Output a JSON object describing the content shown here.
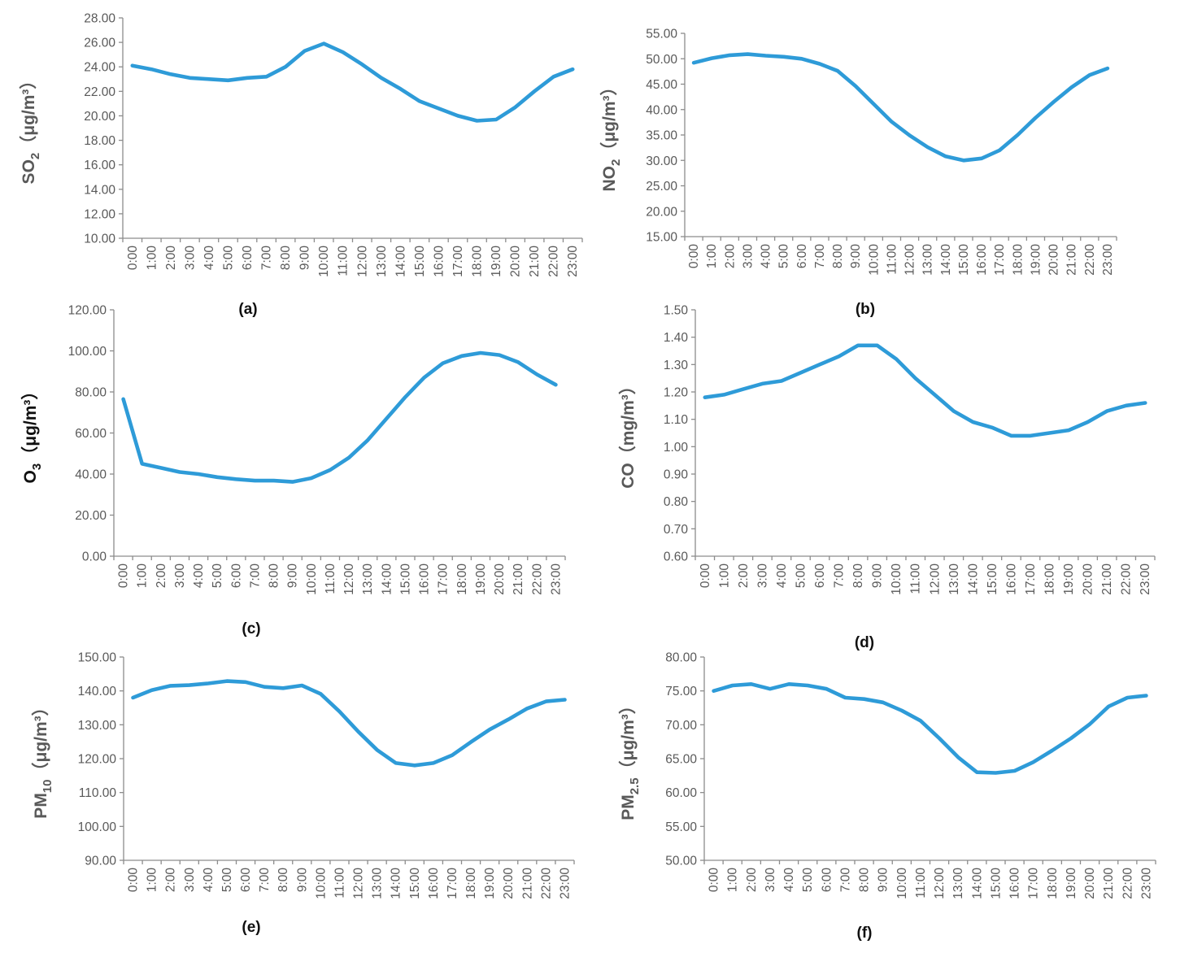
{
  "chart_data": [
    {
      "panel_label": "(a)",
      "type": "line",
      "ylabel": {
        "main": "SO",
        "sub": "2",
        "unit": "（μg/m³）"
      },
      "ylim": [
        10,
        28
      ],
      "yticks": [
        "10.00",
        "12.00",
        "14.00",
        "16.00",
        "18.00",
        "20.00",
        "22.00",
        "24.00",
        "26.00",
        "28.00"
      ],
      "categories": [
        "0:00",
        "1:00",
        "2:00",
        "3:00",
        "4:00",
        "5:00",
        "6:00",
        "7:00",
        "8:00",
        "9:00",
        "10:00",
        "11:00",
        "12:00",
        "13:00",
        "14:00",
        "15:00",
        "16:00",
        "17:00",
        "18:00",
        "19:00",
        "20:00",
        "21:00",
        "22:00",
        "23:00"
      ],
      "values": [
        24.1,
        23.8,
        23.4,
        23.1,
        23.0,
        22.9,
        23.1,
        23.2,
        24.0,
        25.3,
        25.9,
        25.2,
        24.2,
        23.1,
        22.2,
        21.2,
        20.6,
        20.0,
        19.6,
        19.7,
        20.7,
        22.0,
        23.2,
        23.8
      ],
      "grid": false,
      "legend": "none",
      "color": "#2e9bd8"
    },
    {
      "panel_label": "(b)",
      "type": "line",
      "ylabel": {
        "main": "NO",
        "sub": "2",
        "unit": "（μg/m³）"
      },
      "ylim": [
        15,
        55
      ],
      "yticks": [
        "15.00",
        "20.00",
        "25.00",
        "30.00",
        "35.00",
        "40.00",
        "45.00",
        "50.00",
        "55.00"
      ],
      "categories": [
        "0:00",
        "1:00",
        "2:00",
        "3:00",
        "4:00",
        "5:00",
        "6:00",
        "7:00",
        "8:00",
        "9:00",
        "10:00",
        "11:00",
        "12:00",
        "13:00",
        "14:00",
        "15:00",
        "16:00",
        "17:00",
        "18:00",
        "19:00",
        "20:00",
        "21:00",
        "22:00",
        "23:00"
      ],
      "values": [
        49.2,
        50.1,
        50.7,
        50.9,
        50.6,
        50.4,
        50.0,
        49.0,
        47.6,
        44.6,
        41.1,
        37.6,
        34.9,
        32.6,
        30.8,
        30.0,
        30.4,
        32.0,
        35.0,
        38.4,
        41.5,
        44.4,
        46.8,
        48.1
      ],
      "grid": false,
      "legend": "none",
      "color": "#2e9bd8"
    },
    {
      "panel_label": "(c)",
      "type": "line",
      "ylabel": {
        "main": "O",
        "sub": "3",
        "unit": "（μg/m³）"
      },
      "ylim": [
        0,
        120
      ],
      "yticks": [
        "0.00",
        "20.00",
        "40.00",
        "60.00",
        "80.00",
        "100.00",
        "120.00"
      ],
      "categories": [
        "0:00",
        "1:00",
        "2:00",
        "3:00",
        "4:00",
        "5:00",
        "6:00",
        "7:00",
        "8:00",
        "9:00",
        "10:00",
        "11:00",
        "12:00",
        "13:00",
        "14:00",
        "15:00",
        "16:00",
        "17:00",
        "18:00",
        "19:00",
        "20:00",
        "21:00",
        "22:00",
        "23:00"
      ],
      "values": [
        76.5,
        45.0,
        43.0,
        41.0,
        40.0,
        38.5,
        37.5,
        36.8,
        36.8,
        36.2,
        38.0,
        42.0,
        48.0,
        56.5,
        67.0,
        77.5,
        87.0,
        94.0,
        97.5,
        99.0,
        98.0,
        94.5,
        88.5,
        83.5
      ],
      "grid": false,
      "legend": "none",
      "color": "#2e9bd8"
    },
    {
      "panel_label": "(d)",
      "type": "line",
      "ylabel": {
        "main": "CO",
        "sub": "",
        "unit": "（mg/m³）"
      },
      "ylim": [
        0.6,
        1.5
      ],
      "yticks": [
        "0.60",
        "0.70",
        "0.80",
        "0.90",
        "1.00",
        "1.10",
        "1.20",
        "1.30",
        "1.40",
        "1.50"
      ],
      "categories": [
        "0:00",
        "1:00",
        "2:00",
        "3:00",
        "4:00",
        "5:00",
        "6:00",
        "7:00",
        "8:00",
        "9:00",
        "10:00",
        "11:00",
        "12:00",
        "13:00",
        "14:00",
        "15:00",
        "16:00",
        "17:00",
        "18:00",
        "19:00",
        "20:00",
        "21:00",
        "22:00",
        "23:00"
      ],
      "values": [
        1.18,
        1.19,
        1.21,
        1.23,
        1.24,
        1.27,
        1.3,
        1.33,
        1.37,
        1.37,
        1.32,
        1.25,
        1.19,
        1.13,
        1.09,
        1.07,
        1.04,
        1.04,
        1.05,
        1.06,
        1.09,
        1.13,
        1.15,
        1.16
      ],
      "grid": false,
      "legend": "none",
      "color": "#2e9bd8"
    },
    {
      "panel_label": "(e)",
      "type": "line",
      "ylabel": {
        "main": "PM",
        "sub": "10",
        "unit": "（μg/m³）"
      },
      "ylim": [
        90,
        150
      ],
      "yticks": [
        "90.00",
        "100.00",
        "110.00",
        "120.00",
        "130.00",
        "140.00",
        "150.00"
      ],
      "categories": [
        "0:00",
        "1:00",
        "2:00",
        "3:00",
        "4:00",
        "5:00",
        "6:00",
        "7:00",
        "8:00",
        "9:00",
        "10:00",
        "11:00",
        "12:00",
        "13:00",
        "14:00",
        "15:00",
        "16:00",
        "17:00",
        "18:00",
        "19:00",
        "20:00",
        "21:00",
        "22:00",
        "23:00"
      ],
      "values": [
        138.0,
        140.2,
        141.5,
        141.7,
        142.2,
        142.9,
        142.6,
        141.2,
        140.8,
        141.6,
        139.1,
        133.9,
        128.0,
        122.6,
        118.7,
        118.0,
        118.7,
        121.0,
        124.9,
        128.6,
        131.6,
        134.8,
        136.9,
        137.4
      ],
      "grid": false,
      "legend": "none",
      "color": "#2e9bd8"
    },
    {
      "panel_label": "(f)",
      "type": "line",
      "ylabel": {
        "main": "PM",
        "sub": "2.5",
        "unit": "（μg/m³）"
      },
      "ylim": [
        50,
        80
      ],
      "yticks": [
        "50.00",
        "55.00",
        "60.00",
        "65.00",
        "70.00",
        "75.00",
        "80.00"
      ],
      "categories": [
        "0:00",
        "1:00",
        "2:00",
        "3:00",
        "4:00",
        "5:00",
        "6:00",
        "7:00",
        "8:00",
        "9:00",
        "10:00",
        "11:00",
        "12:00",
        "13:00",
        "14:00",
        "15:00",
        "16:00",
        "17:00",
        "18:00",
        "19:00",
        "20:00",
        "21:00",
        "22:00",
        "23:00"
      ],
      "values": [
        75.0,
        75.8,
        76.0,
        75.3,
        76.0,
        75.8,
        75.3,
        74.0,
        73.8,
        73.3,
        72.1,
        70.6,
        68.0,
        65.2,
        63.0,
        62.9,
        63.2,
        64.5,
        66.2,
        68.0,
        70.1,
        72.7,
        74.0,
        74.3
      ],
      "grid": false,
      "legend": "none",
      "color": "#2e9bd8"
    }
  ]
}
